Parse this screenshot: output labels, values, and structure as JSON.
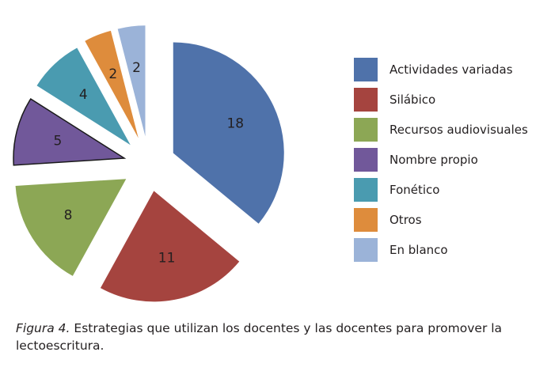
{
  "chart_data": {
    "type": "pie",
    "title": "",
    "categories": [
      "Actividades variadas",
      "Silábico",
      "Recursos audiovisuales",
      "Nombre propio",
      "Fonético",
      "Otros",
      "En blanco"
    ],
    "values": [
      18,
      11,
      8,
      5,
      4,
      2,
      2
    ],
    "colors": [
      "#4f72aa",
      "#a5443f",
      "#8ca755",
      "#71589a",
      "#4a9bb0",
      "#de8c3c",
      "#9bb3d8"
    ],
    "exploded": true,
    "legend_position": "right"
  },
  "caption": {
    "figure_label": "Figura 4.",
    "text": " Estrategias que utilizan los docentes y las docentes para promover la lectoescritura."
  }
}
